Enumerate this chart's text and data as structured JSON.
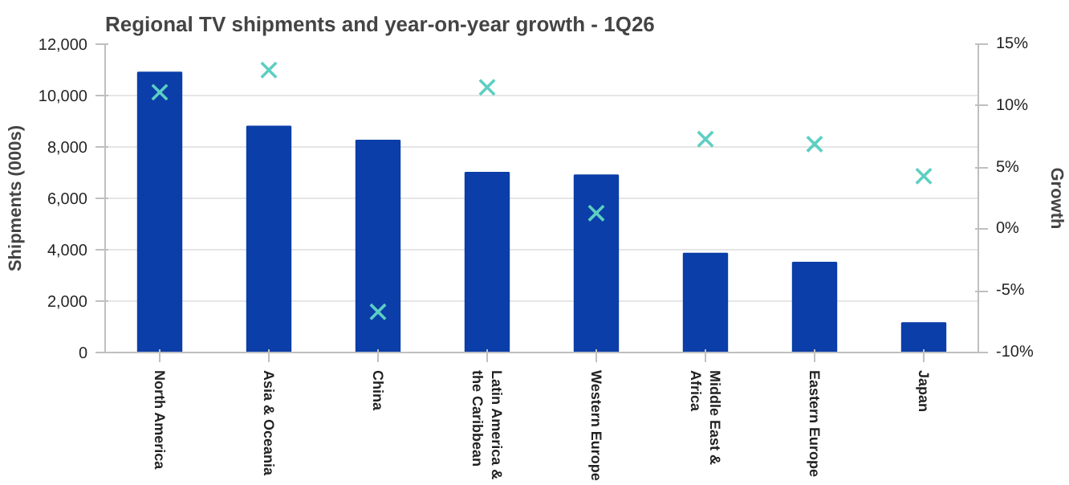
{
  "chart_data": {
    "type": "bar",
    "title": "Regional TV shipments and year-on-year growth - 1Q26",
    "ylabel": "Shipments (000s)",
    "y2label": "Growth",
    "categories": [
      "North America",
      "Asia & Oceania",
      "China",
      "Latin America & the Caribbean",
      "Western Europe",
      "Middle East & Africa",
      "Eastern Europe",
      "Japan"
    ],
    "series": [
      {
        "color": "#0b3ea8",
        "values": [
          10900,
          8800,
          8250,
          7000,
          6900,
          3850,
          3500,
          1150
        ]
      },
      {
        "type": "scatter",
        "axis": "y2",
        "marker": "cross",
        "color": "#5ccfc2",
        "values": [
          11.1,
          12.9,
          -6.7,
          11.5,
          1.3,
          7.3,
          6.9,
          4.3
        ]
      }
    ],
    "ylim": [
      0,
      12000
    ],
    "yticks": [
      0,
      {
        "value": 2000,
        "label": "2,000"
      },
      {
        "value": 4000,
        "label": "4,000"
      },
      {
        "value": 6000,
        "label": "6,000"
      },
      {
        "value": 8000,
        "label": "8,000"
      },
      {
        "value": 10000,
        "label": "10,000"
      },
      {
        "value": 12000,
        "label": "12,000"
      }
    ],
    "y2lim": [
      -10,
      15
    ],
    "y2ticks": [
      {
        "value": -10,
        "label": "-10%"
      },
      {
        "value": -5,
        "label": "-5%"
      },
      {
        "value": 0,
        "label": "0%"
      },
      {
        "value": 5,
        "label": "5%"
      },
      {
        "value": 10,
        "label": "10%"
      },
      {
        "value": 15,
        "label": "15%"
      }
    ],
    "grid": "y"
  }
}
